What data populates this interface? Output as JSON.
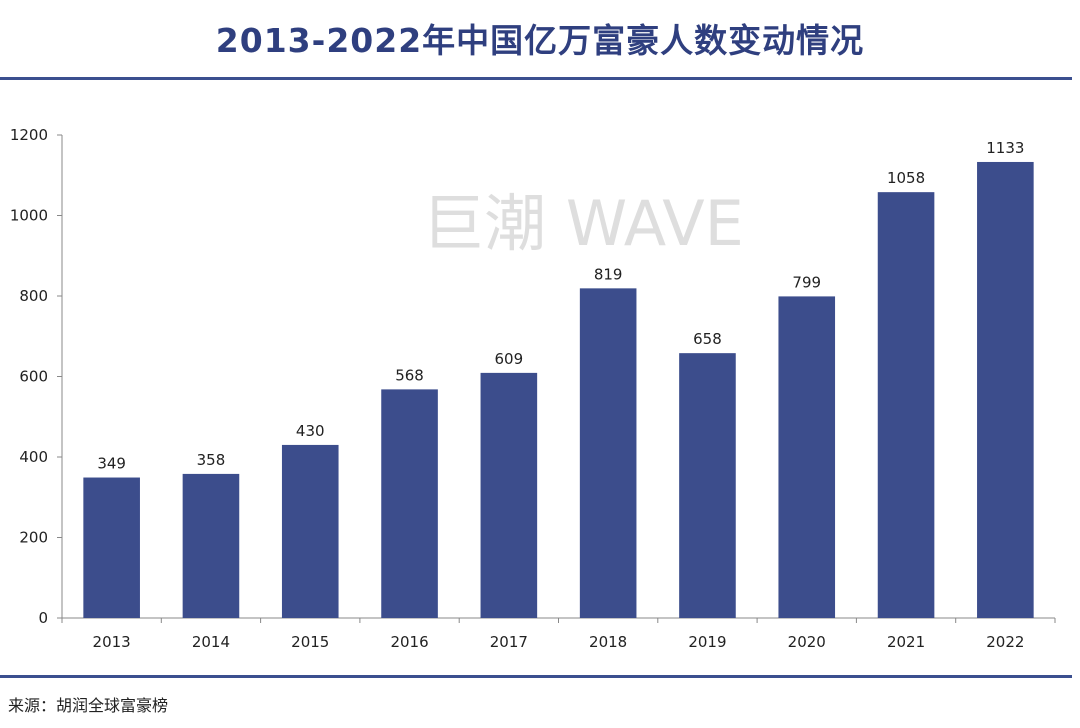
{
  "title": "2013-2022年中国亿万富豪人数变动情况",
  "source": "来源：胡润全球富豪榜",
  "watermark": "巨潮 WAVE",
  "colors": {
    "bar": "#3c4d8c",
    "title": "#2f3f7f",
    "rule": "#3b4f8f",
    "axis": "#888888",
    "watermark": "#dedede"
  },
  "chart_data": {
    "type": "bar",
    "title": "2013-2022年中国亿万富豪人数变动情况",
    "categories": [
      "2013",
      "2014",
      "2015",
      "2016",
      "2017",
      "2018",
      "2019",
      "2020",
      "2021",
      "2022"
    ],
    "values": [
      349,
      358,
      430,
      568,
      609,
      819,
      658,
      799,
      1058,
      1133
    ],
    "ylim": [
      0,
      1200
    ],
    "yticks": [
      0,
      200,
      400,
      600,
      800,
      1000,
      1200
    ],
    "xlabel": "",
    "ylabel": "",
    "grid": false,
    "legend": "none",
    "data_labels": true
  }
}
